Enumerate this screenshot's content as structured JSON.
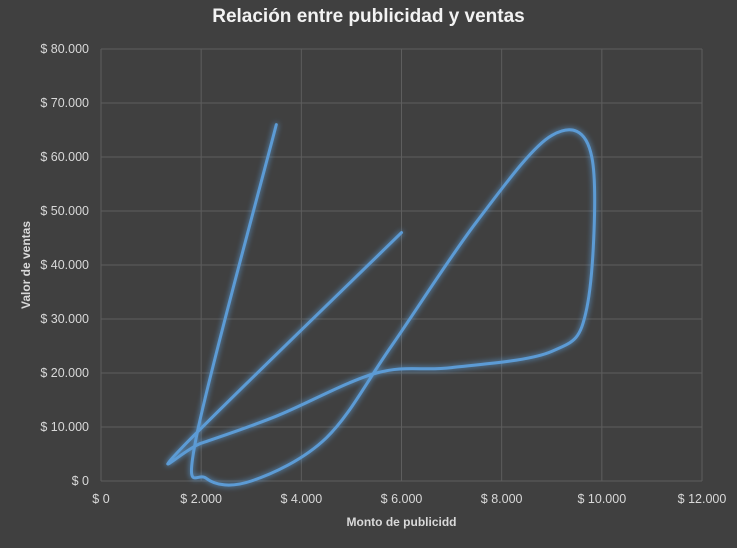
{
  "chart_data": {
    "type": "scatter",
    "title": "Relación entre publicidad y ventas",
    "xlabel": "Monto de publicidd",
    "ylabel": "Valor de ventas",
    "xlim": [
      0,
      12000
    ],
    "ylim": [
      0,
      80000
    ],
    "x_ticks": [
      0,
      2000,
      4000,
      6000,
      8000,
      10000,
      12000
    ],
    "y_ticks": [
      0,
      10000,
      20000,
      30000,
      40000,
      50000,
      60000,
      70000,
      80000
    ],
    "x_tick_labels": [
      "$ 0",
      "$ 2.000",
      "$ 4.000",
      "$ 6.000",
      "$ 8.000",
      "$ 10.000",
      "$ 12.000"
    ],
    "y_tick_labels": [
      "$ 0",
      "$ 10.000",
      "$ 20.000",
      "$ 30.000",
      "$ 40.000",
      "$ 50.000",
      "$ 60.000",
      "$ 70.000",
      "$ 80.000"
    ],
    "smooth": true,
    "grid": true,
    "line_color": "#5b9bd5",
    "series": [
      {
        "x": [
          3500,
          1900,
          2100,
          3000,
          4500,
          5800,
          7500,
          9000,
          9800,
          9700,
          9000,
          7000,
          5500,
          3500,
          2000,
          1600,
          6000
        ],
        "y": [
          66000,
          8000,
          500,
          0,
          8000,
          25000,
          48000,
          64000,
          60000,
          32000,
          24000,
          21000,
          20000,
          12000,
          7000,
          6000,
          46000
        ]
      }
    ]
  }
}
